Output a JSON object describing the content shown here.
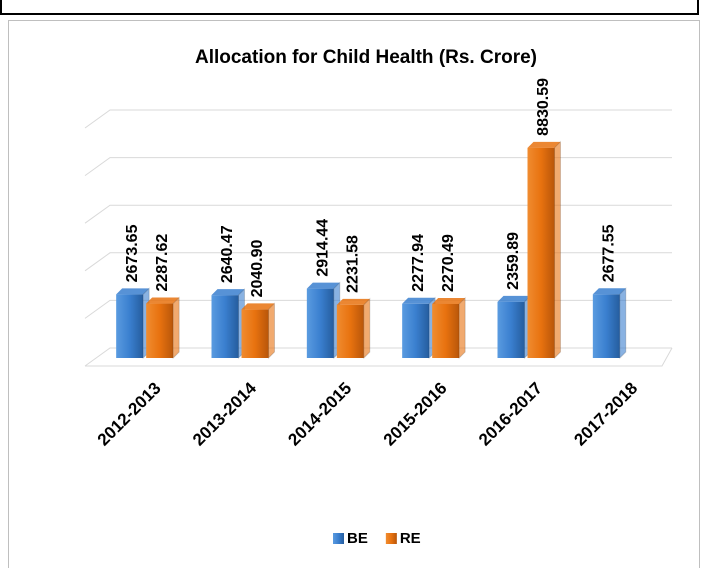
{
  "chart_data": {
    "type": "bar3d",
    "title": "Allocation for Child Health (Rs. Crore)",
    "categories": [
      "2012-2013",
      "2013-2014",
      "2014-2015",
      "2015-2016",
      "2016-2017",
      "2017-2018"
    ],
    "series": [
      {
        "name": "BE",
        "color": "#3a7fcf",
        "values": [
          2673.65,
          2640.47,
          2914.44,
          2277.94,
          2359.89,
          2677.55
        ]
      },
      {
        "name": "RE",
        "color": "#e8720f",
        "values": [
          2287.62,
          2040.9,
          2231.58,
          2270.49,
          8830.59,
          null
        ],
        "value_labels": [
          "2287.62",
          "2040.90",
          "2231.58",
          "2270.49",
          "8830.59",
          null
        ]
      }
    ],
    "ylim": [
      0,
      10000
    ],
    "yticks": [
      0,
      2000,
      4000,
      6000,
      8000,
      10000
    ],
    "grid": true,
    "legend": "bottom"
  }
}
